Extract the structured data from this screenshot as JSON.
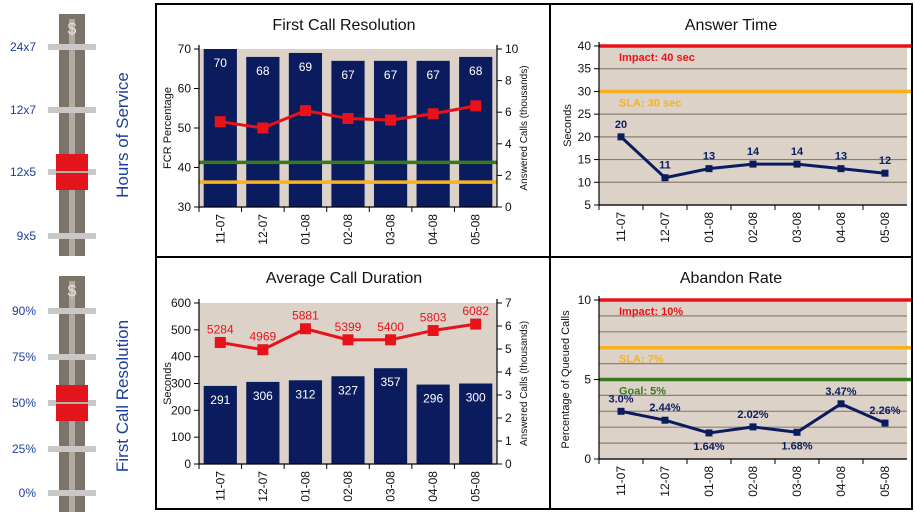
{
  "sliders": [
    {
      "id": "hours",
      "title": "Hours of Service",
      "labels": [
        "24x7",
        "12x7",
        "12x5",
        "9x5"
      ],
      "selected": "12x5",
      "handle_icon": "dollar-icon"
    },
    {
      "id": "fcr",
      "title": "First Call Resolution",
      "labels": [
        "90%",
        "75%",
        "50%",
        "25%",
        "0%"
      ],
      "selected": "50%",
      "handle_icon": "dollar-icon"
    }
  ],
  "colors": {
    "navy": "#0b1c5e",
    "red": "#e8131a",
    "green": "#3a7a1e",
    "orange": "#f7b21d",
    "plot_bg": "#dcd2c8",
    "slider_track": "#7d7469",
    "slider_handle": "#e3151c",
    "slider_tick": "#c8c8c8",
    "slider_title": "#1c3f9a"
  },
  "chart_data": [
    {
      "id": "fcr",
      "type": "bar",
      "title": "First Call Resolution",
      "categories": [
        "11-07",
        "12-07",
        "01-08",
        "02-08",
        "03-08",
        "04-08",
        "05-08"
      ],
      "ylabel": "FCR Percentage",
      "ylim": [
        30,
        70
      ],
      "yticks": [
        30,
        40,
        50,
        60,
        70
      ],
      "y2label": "Answered Calls (thousands)",
      "y2lim": [
        0,
        10
      ],
      "y2ticks": [
        0,
        2,
        4,
        6,
        8,
        10
      ],
      "bars": {
        "axis": "left",
        "values": [
          70,
          68,
          69,
          67,
          67,
          67,
          68
        ],
        "labels": [
          "70",
          "68",
          "69",
          "67",
          "67",
          "67",
          "68"
        ]
      },
      "line": {
        "axis": "right",
        "values": [
          5.4,
          5.0,
          6.1,
          5.6,
          5.5,
          5.9,
          6.4
        ],
        "labels": []
      },
      "reference_lines": [
        {
          "axis": "left",
          "value": 41.3,
          "color": "#3a7a1e",
          "label": ""
        },
        {
          "axis": "left",
          "value": 36.3,
          "color": "#f7b21d",
          "label": ""
        }
      ]
    },
    {
      "id": "answer",
      "type": "line",
      "title": "Answer Time",
      "categories": [
        "11-07",
        "12-07",
        "01-08",
        "02-08",
        "03-08",
        "04-08",
        "05-08"
      ],
      "ylabel": "Seconds",
      "ylim": [
        5,
        40
      ],
      "yticks": [
        5,
        10,
        15,
        20,
        25,
        30,
        35,
        40
      ],
      "y2label": "",
      "bars": null,
      "line": {
        "axis": "left",
        "values": [
          20,
          11,
          13,
          14,
          14,
          13,
          12
        ],
        "labels": [
          "20",
          "11",
          "13",
          "14",
          "14",
          "13",
          "12"
        ]
      },
      "reference_lines": [
        {
          "axis": "left",
          "value": 40,
          "color": "#e8131a",
          "label": "Impact: 40 sec"
        },
        {
          "axis": "left",
          "value": 30,
          "color": "#f7b21d",
          "label": "SLA: 30 sec"
        }
      ]
    },
    {
      "id": "duration",
      "type": "bar",
      "title": "Average Call Duration",
      "categories": [
        "11-07",
        "12-07",
        "01-08",
        "02-08",
        "03-08",
        "04-08",
        "05-08"
      ],
      "ylabel": "Seconds",
      "ylim": [
        0,
        600
      ],
      "yticks": [
        0,
        100,
        200,
        300,
        400,
        500,
        600
      ],
      "y2label": "Answered Calls (thousands)",
      "y2lim": [
        0,
        7
      ],
      "y2ticks": [
        0,
        1,
        2,
        3,
        4,
        5,
        6,
        7
      ],
      "bars": {
        "axis": "left",
        "values": [
          291,
          306,
          312,
          327,
          357,
          296,
          300
        ],
        "labels": [
          "291",
          "306",
          "312",
          "327",
          "357",
          "296",
          "300"
        ]
      },
      "line": {
        "axis": "right",
        "values": [
          5.284,
          4.969,
          5.881,
          5.399,
          5.4,
          5.803,
          6.082
        ],
        "labels": [
          "5284",
          "4969",
          "5881",
          "5399",
          "5400",
          "5803",
          "6082"
        ]
      },
      "reference_lines": []
    },
    {
      "id": "abandon",
      "type": "line",
      "title": "Abandon Rate",
      "categories": [
        "11-07",
        "12-07",
        "01-08",
        "02-08",
        "03-08",
        "04-08",
        "05-08"
      ],
      "ylabel": "Percentage of Queued Calls",
      "ylim": [
        0,
        10
      ],
      "yticks": [
        0,
        5,
        10
      ],
      "y2label": "",
      "bars": null,
      "line": {
        "axis": "left",
        "values": [
          3.0,
          2.44,
          1.64,
          2.02,
          1.68,
          3.47,
          2.26
        ],
        "labels": [
          "3.0%",
          "2.44%",
          "1.64%",
          "2.02%",
          "1.68%",
          "3.47%",
          "2.26%"
        ]
      },
      "reference_lines": [
        {
          "axis": "left",
          "value": 10,
          "color": "#e8131a",
          "label": "Impact: 10%"
        },
        {
          "axis": "left",
          "value": 7,
          "color": "#f7b21d",
          "label": "SLA: 7%"
        },
        {
          "axis": "left",
          "value": 5,
          "color": "#3a7a1e",
          "label": "Goal: 5%"
        }
      ]
    }
  ]
}
